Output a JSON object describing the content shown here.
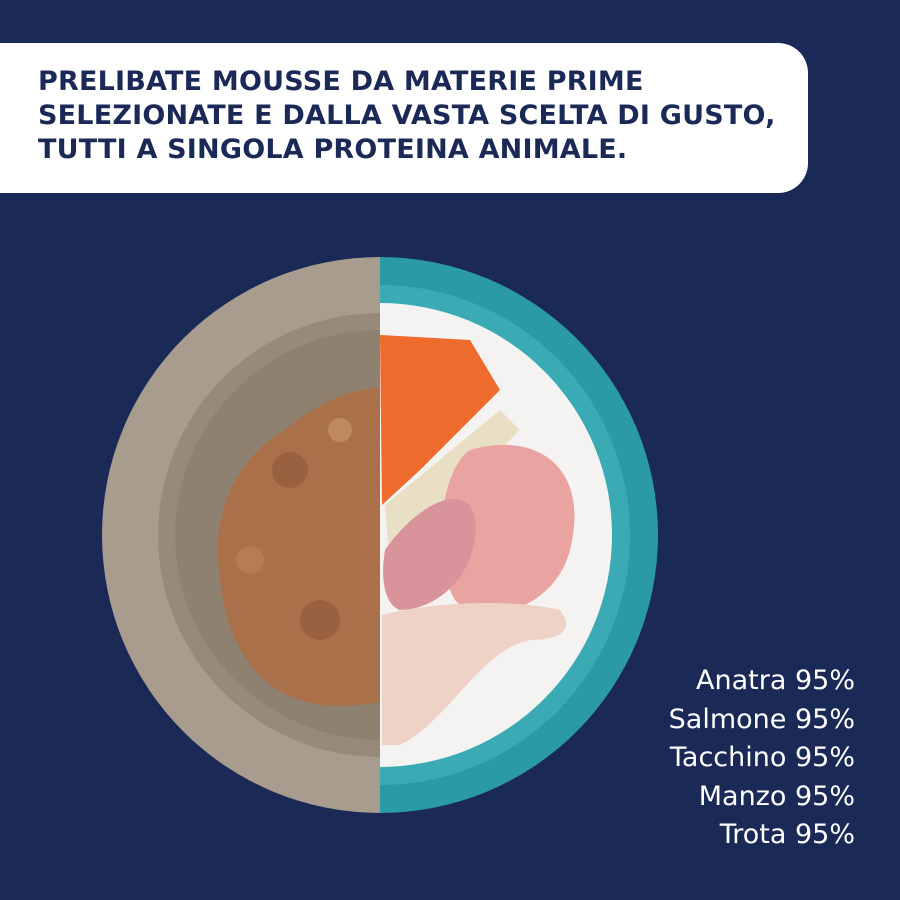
{
  "header": {
    "lines": [
      "PRELIBATE MOUSSE DA MATERIE PRIME",
      "SELEZIONATE E DALLA VASTA SCELTA DI GUSTO,",
      "TUTTI A SINGOLA PROTEINA ANIMALE."
    ]
  },
  "flavors": [
    "Anatra 95%",
    "Salmone 95%",
    "Tacchino 95%",
    "Manzo 95%",
    "Trota 95%"
  ]
}
